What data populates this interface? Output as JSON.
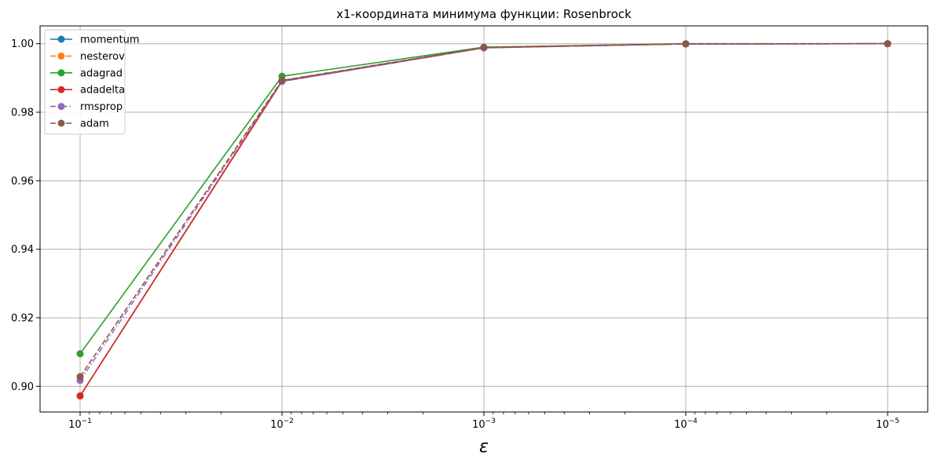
{
  "chart_data": {
    "type": "line",
    "title": "x1-координата минимума функции: Rosenbrock",
    "xlabel": "ε",
    "ylabel": "",
    "x_scale": "log",
    "x_inverted": true,
    "x": [
      0.1,
      0.01,
      0.001,
      0.0001,
      1e-05
    ],
    "xtick_labels": [
      {
        "base": "10",
        "exp": "−1"
      },
      {
        "base": "10",
        "exp": "−2"
      },
      {
        "base": "10",
        "exp": "−3"
      },
      {
        "base": "10",
        "exp": "−4"
      },
      {
        "base": "10",
        "exp": "−5"
      }
    ],
    "ylim": [
      0.8925,
      1.0052
    ],
    "yticks": [
      0.9,
      0.92,
      0.94,
      0.96,
      0.98,
      1.0
    ],
    "ytick_labels": [
      "0.90",
      "0.92",
      "0.94",
      "0.96",
      "0.98",
      "1.00"
    ],
    "grid": true,
    "legend_position": "top-left",
    "series": [
      {
        "name": "momentum",
        "color": "#1f77b4",
        "dash": "solid",
        "values": [
          0.8972,
          0.9892,
          0.9989,
          0.99995,
          1.0
        ]
      },
      {
        "name": "nesterov",
        "color": "#ff7f0e",
        "dash": "dashed",
        "values": [
          0.8972,
          0.9892,
          0.9989,
          0.99995,
          1.0
        ]
      },
      {
        "name": "adagrad",
        "color": "#2ca02c",
        "dash": "solid",
        "values": [
          0.9095,
          0.9905,
          0.999,
          1.0,
          1.0
        ]
      },
      {
        "name": "adadelta",
        "color": "#d62728",
        "dash": "solid",
        "values": [
          0.8972,
          0.989,
          0.9988,
          0.99995,
          1.0
        ]
      },
      {
        "name": "rmsprop",
        "color": "#9467bd",
        "dash": "dashdot",
        "values": [
          0.9017,
          0.989,
          0.9988,
          0.99995,
          1.0
        ]
      },
      {
        "name": "adam",
        "color": "#8c564b",
        "dash": "dashed",
        "values": [
          0.9028,
          0.9893,
          0.9989,
          0.99995,
          1.0
        ]
      }
    ]
  }
}
